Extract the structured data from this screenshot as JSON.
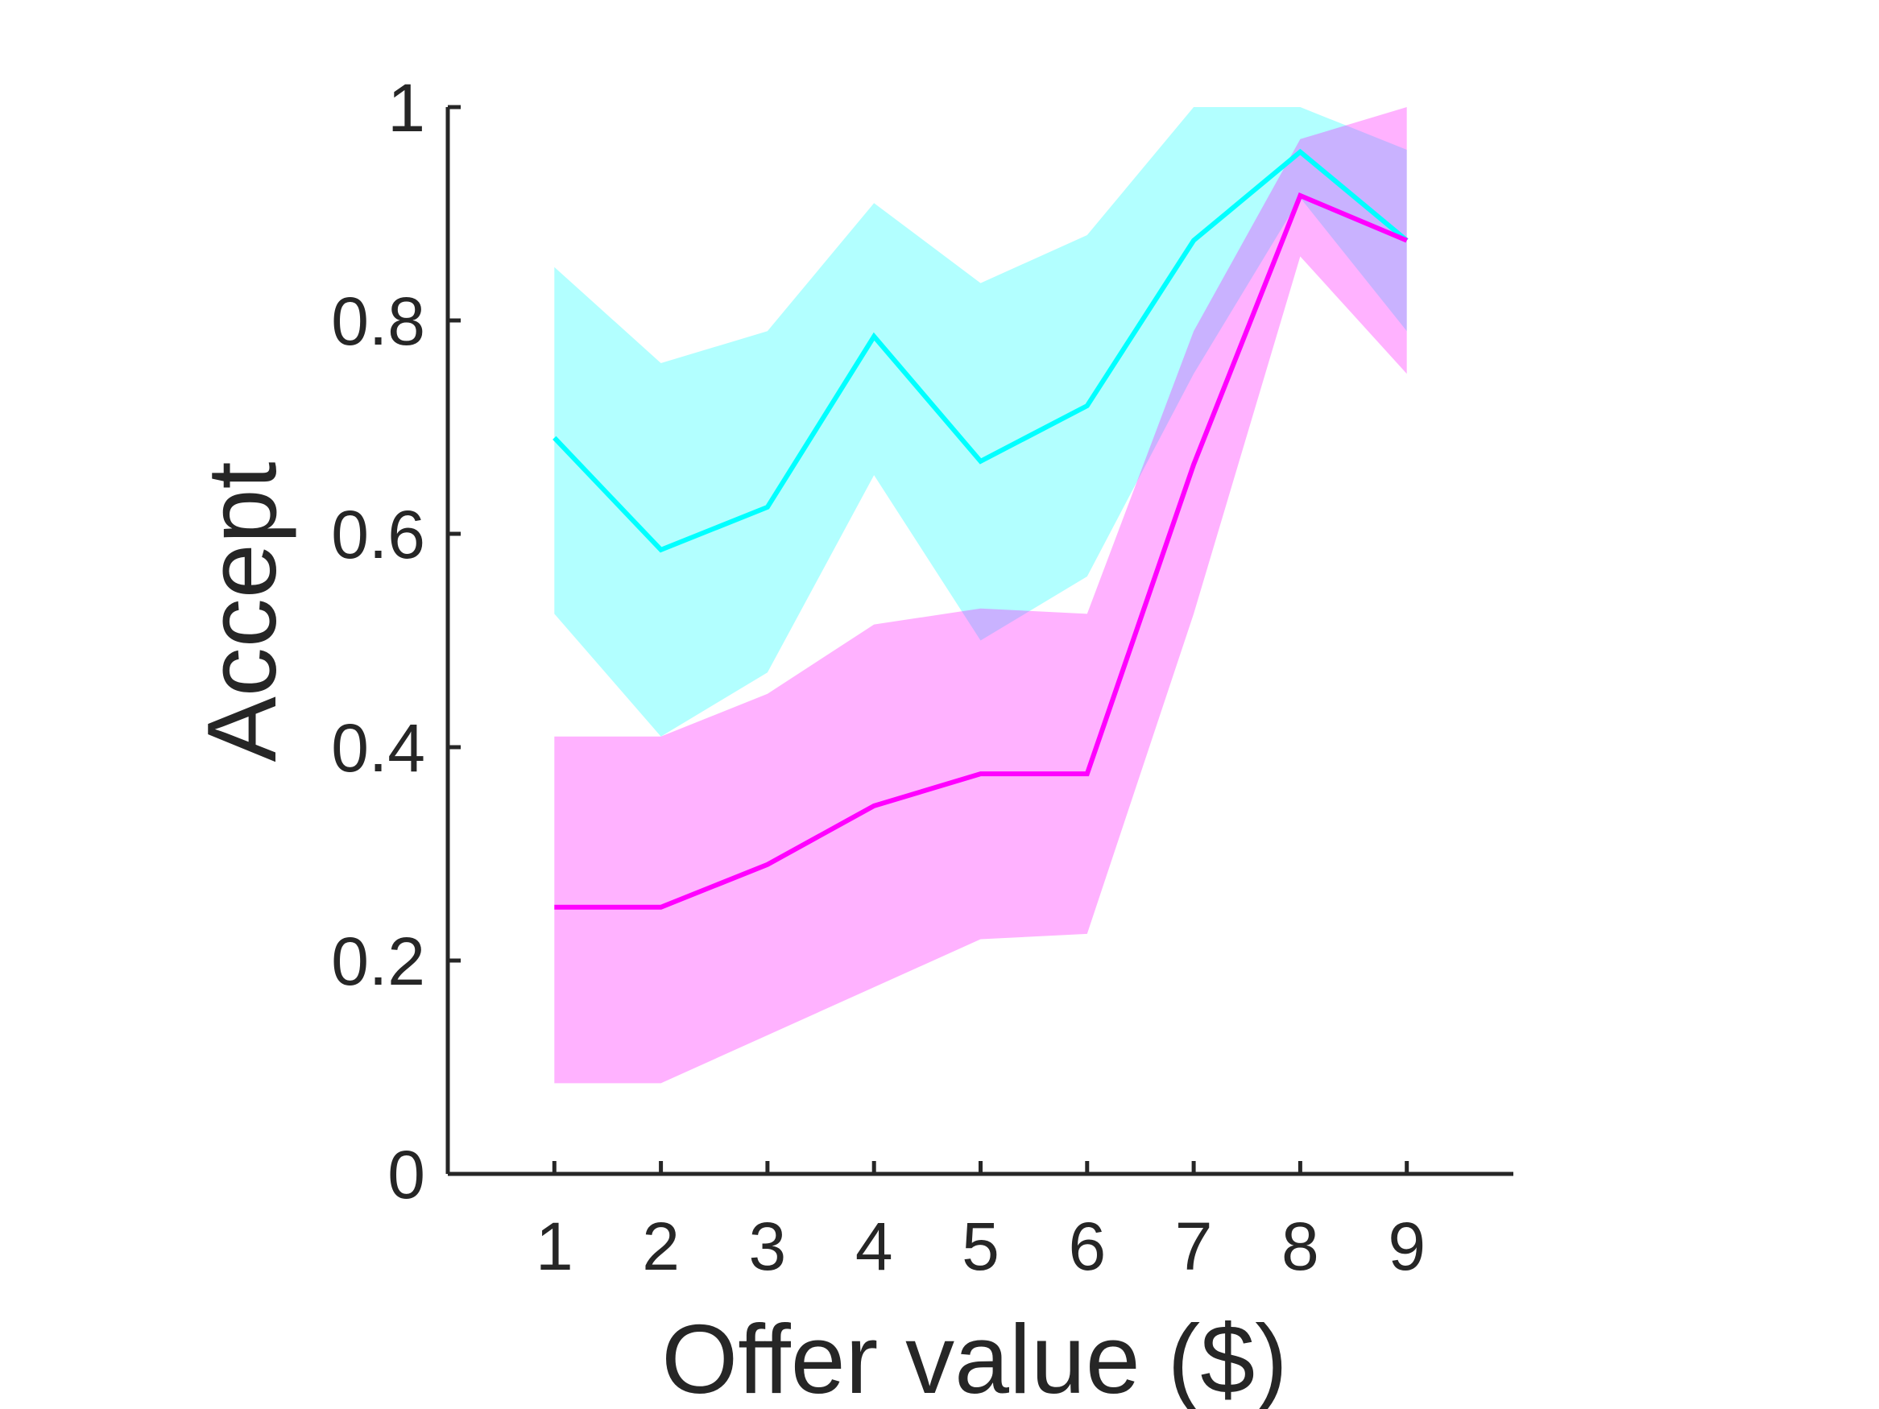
{
  "chart_data": {
    "type": "line",
    "title": "",
    "xlabel": "Offer value ($)",
    "ylabel": "Accept",
    "x": [
      1,
      2,
      3,
      4,
      5,
      6,
      7,
      8,
      9
    ],
    "xlim": [
      0,
      10
    ],
    "ylim": [
      0,
      1
    ],
    "xticks": [
      1,
      2,
      3,
      4,
      5,
      6,
      7,
      8,
      9
    ],
    "yticks": [
      0,
      0.2,
      0.4,
      0.6,
      0.8,
      1
    ],
    "ytick_labels": [
      "0",
      "0.2",
      "0.4",
      "0.6",
      "0.8",
      "1"
    ],
    "grid": false,
    "legend": false,
    "series": [
      {
        "color": "#00ffff",
        "values": [
          0.69,
          0.585,
          0.625,
          0.785,
          0.668,
          0.72,
          0.875,
          0.958,
          0.875
        ],
        "upper": [
          0.85,
          0.76,
          0.79,
          0.91,
          0.835,
          0.88,
          1.0,
          1.0,
          0.96
        ],
        "lower": [
          0.525,
          0.41,
          0.47,
          0.655,
          0.5,
          0.56,
          0.75,
          0.915,
          0.79
        ]
      },
      {
        "color": "#ff00ff",
        "values": [
          0.25,
          0.25,
          0.29,
          0.345,
          0.375,
          0.375,
          0.665,
          0.917,
          0.875
        ],
        "upper": [
          0.41,
          0.41,
          0.45,
          0.515,
          0.53,
          0.525,
          0.79,
          0.97,
          1.0
        ],
        "lower": [
          0.085,
          0.085,
          0.13,
          0.175,
          0.22,
          0.225,
          0.525,
          0.86,
          0.75
        ]
      }
    ]
  }
}
